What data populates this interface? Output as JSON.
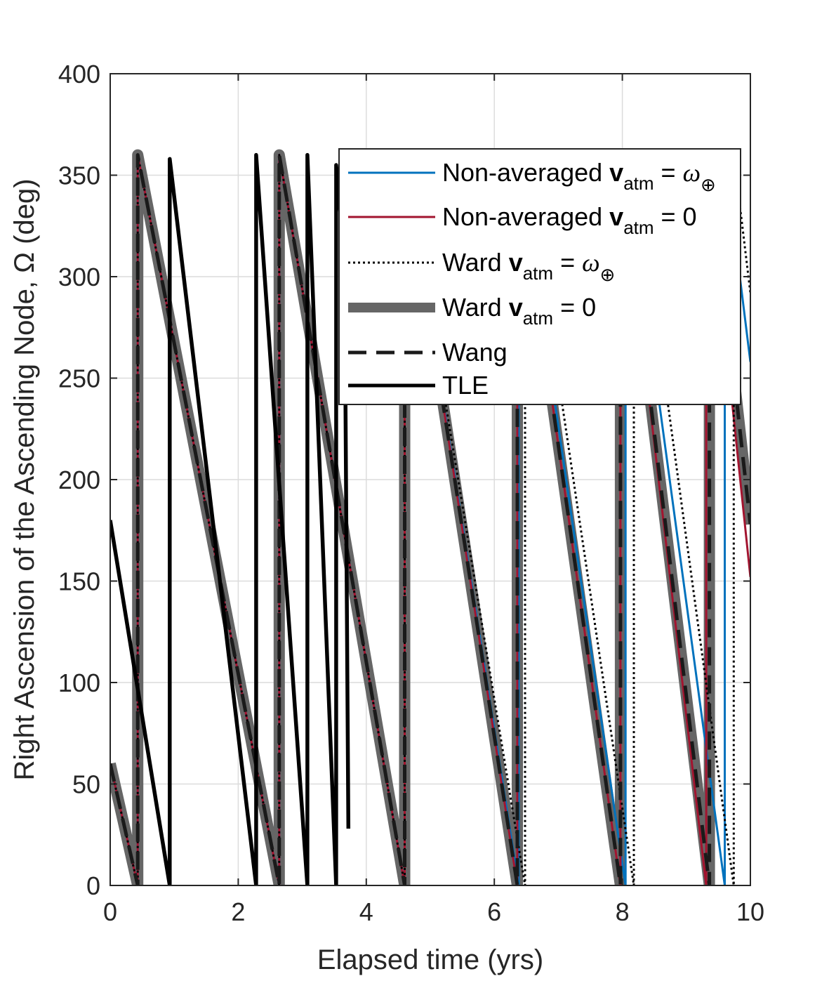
{
  "chart_data": {
    "type": "line",
    "xlabel": "Elapsed time (yrs)",
    "ylabel": "Right Ascension of the Ascending Node, Ω (deg)",
    "xlim": [
      0,
      10
    ],
    "ylim": [
      0,
      400
    ],
    "xticks": [
      0,
      2,
      4,
      6,
      8,
      10
    ],
    "yticks": [
      0,
      50,
      100,
      150,
      200,
      250,
      300,
      350,
      400
    ],
    "grid": true,
    "legend_position": "top-right",
    "colors": {
      "nonavg_omega": "#0072BD",
      "nonavg_zero": "#A2142F",
      "ward_omega": "#000000",
      "ward_zero": "#666666",
      "wang": "#1a1a1a",
      "tle": "#000000"
    },
    "series": [
      {
        "name": "Non-averaged v_atm = ω⊕",
        "legend": {
          "pre": "Non-averaged ",
          "bold": "v",
          "sub": "atm",
          "post": " = ",
          "symbol": "ω",
          "symsub": "⊕"
        },
        "style": "nonavg_omega",
        "points": [
          [
            0,
            60
          ],
          [
            0.43,
            0
          ],
          [
            0.43,
            360
          ],
          [
            2.64,
            0
          ],
          [
            2.64,
            360
          ],
          [
            4.6,
            0
          ],
          [
            4.6,
            360
          ],
          [
            6.38,
            0
          ],
          [
            6.38,
            360
          ],
          [
            8.05,
            0
          ],
          [
            8.05,
            360
          ],
          [
            9.6,
            0
          ],
          [
            9.6,
            360
          ],
          [
            10,
            258
          ]
        ]
      },
      {
        "name": "Non-averaged v_atm = 0",
        "legend": {
          "pre": "Non-averaged ",
          "bold": "v",
          "sub": "atm",
          "post": " = 0",
          "symbol": "",
          "symsub": ""
        },
        "style": "nonavg_zero",
        "points": [
          [
            0,
            60
          ],
          [
            0.43,
            0
          ],
          [
            0.43,
            360
          ],
          [
            2.64,
            0
          ],
          [
            2.64,
            360
          ],
          [
            4.6,
            0
          ],
          [
            4.6,
            360
          ],
          [
            6.36,
            0
          ],
          [
            6.36,
            360
          ],
          [
            7.97,
            0
          ],
          [
            7.97,
            360
          ],
          [
            9.31,
            0
          ],
          [
            9.31,
            360
          ],
          [
            10,
            152
          ]
        ]
      },
      {
        "name": "Ward v_atm = ω⊕",
        "legend": {
          "pre": "Ward ",
          "bold": "v",
          "sub": "atm",
          "post": " = ",
          "symbol": "ω",
          "symsub": "⊕"
        },
        "style": "ward_omega",
        "points": [
          [
            0,
            60
          ],
          [
            0.43,
            0
          ],
          [
            0.43,
            360
          ],
          [
            2.64,
            0
          ],
          [
            2.64,
            360
          ],
          [
            4.6,
            0
          ],
          [
            4.6,
            360
          ],
          [
            6.48,
            0
          ],
          [
            6.48,
            360
          ],
          [
            8.18,
            0
          ],
          [
            8.18,
            360
          ],
          [
            9.74,
            0
          ],
          [
            9.74,
            360
          ],
          [
            10,
            292
          ]
        ]
      },
      {
        "name": "Ward v_atm = 0",
        "legend": {
          "pre": "Ward ",
          "bold": "v",
          "sub": "atm",
          "post": " = 0",
          "symbol": "",
          "symsub": ""
        },
        "style": "ward_zero",
        "points": [
          [
            0,
            60
          ],
          [
            0.43,
            0
          ],
          [
            0.43,
            360
          ],
          [
            2.64,
            0
          ],
          [
            2.64,
            360
          ],
          [
            4.6,
            0
          ],
          [
            4.6,
            360
          ],
          [
            6.36,
            0
          ],
          [
            6.36,
            360
          ],
          [
            7.97,
            0
          ],
          [
            7.97,
            360
          ],
          [
            9.36,
            0
          ],
          [
            9.36,
            360
          ],
          [
            10,
            178
          ]
        ]
      },
      {
        "name": "Wang",
        "legend": {
          "pre": "Wang",
          "bold": "",
          "sub": "",
          "post": "",
          "symbol": "",
          "symsub": ""
        },
        "style": "wang",
        "points": [
          [
            0,
            60
          ],
          [
            0.43,
            0
          ],
          [
            0.43,
            360
          ],
          [
            2.64,
            0
          ],
          [
            2.64,
            360
          ],
          [
            4.6,
            0
          ],
          [
            4.6,
            360
          ],
          [
            6.36,
            0
          ],
          [
            6.36,
            360
          ],
          [
            7.97,
            0
          ],
          [
            7.97,
            360
          ],
          [
            9.36,
            0
          ],
          [
            9.36,
            360
          ],
          [
            10,
            178
          ]
        ]
      },
      {
        "name": "TLE",
        "legend": {
          "pre": "TLE",
          "bold": "",
          "sub": "",
          "post": "",
          "symbol": "",
          "symsub": ""
        },
        "style": "tle",
        "points": [
          [
            0,
            180
          ],
          [
            0.93,
            0
          ],
          [
            0.93,
            358
          ],
          [
            2.28,
            0
          ],
          [
            2.28,
            360
          ],
          [
            3.08,
            0
          ],
          [
            3.08,
            360
          ],
          [
            3.53,
            0
          ],
          [
            3.53,
            355
          ],
          [
            3.66,
            308
          ],
          [
            3.72,
            28
          ]
        ]
      }
    ]
  }
}
